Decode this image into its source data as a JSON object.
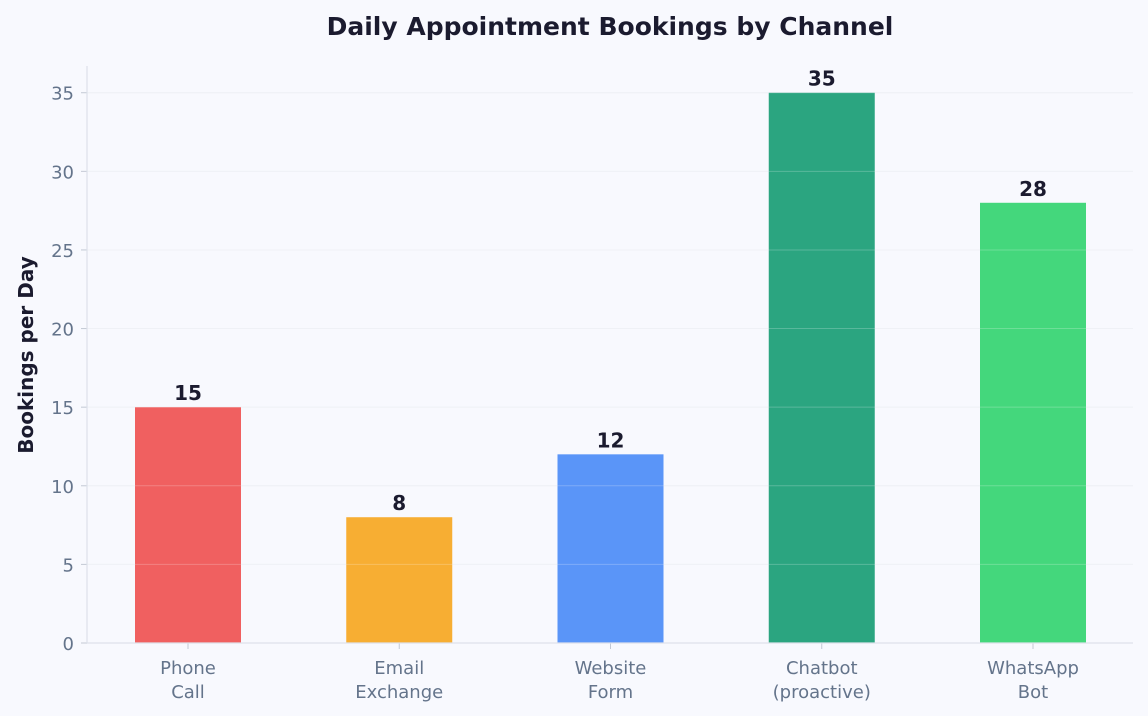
{
  "chart_data": {
    "type": "bar",
    "title": "Daily Appointment Bookings by Channel",
    "xlabel": "",
    "ylabel": "Bookings per Day",
    "categories": [
      [
        "Phone",
        "Call"
      ],
      [
        "Email",
        "Exchange"
      ],
      [
        "Website",
        "Form"
      ],
      [
        "Chatbot",
        "(proactive)"
      ],
      [
        "WhatsApp",
        "Bot"
      ]
    ],
    "values": [
      15,
      8,
      12,
      35,
      28
    ],
    "colors": [
      "#f06060",
      "#f7ae33",
      "#5a95f8",
      "#2ba580",
      "#44d77c"
    ],
    "ylim": [
      0,
      36.7
    ],
    "yticks": [
      0,
      5,
      10,
      15,
      20,
      25,
      30,
      35
    ],
    "grid": true
  }
}
